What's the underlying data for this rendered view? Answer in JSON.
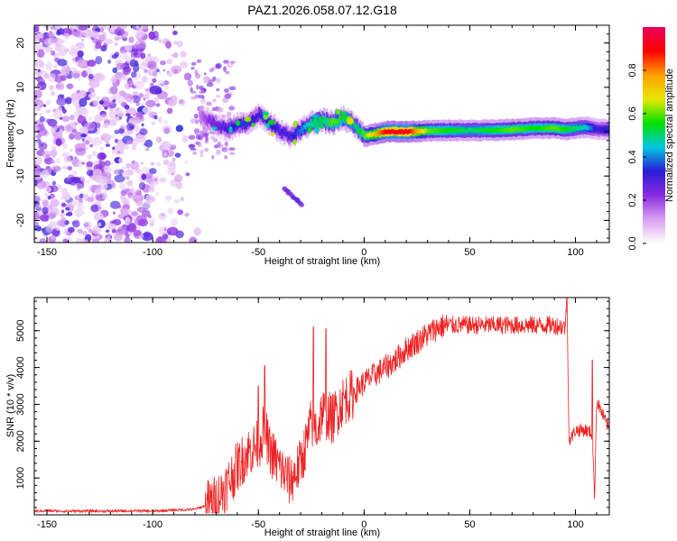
{
  "title": "PAZ1.2026.058.07.12.G18",
  "chart_data": [
    {
      "type": "heatmap",
      "name": "spectrogram",
      "xlabel": "Height of straight line (km)",
      "ylabel": "Frequency (Hz)",
      "xlim": [
        -156,
        116
      ],
      "ylim": [
        -25,
        24
      ],
      "x_ticks": [
        -150,
        -100,
        -50,
        0,
        50,
        100
      ],
      "x_tick_labels": [
        "-150",
        "-100",
        "-50",
        "0",
        "50",
        "100"
      ],
      "y_ticks": [
        -20,
        -10,
        0,
        10,
        20
      ],
      "y_tick_labels": [
        "-20",
        "-10",
        "0",
        "10",
        "20"
      ],
      "noise_region_x": [
        -156,
        -78
      ],
      "ridge": {
        "x": [
          -78,
          -72,
          -65,
          -60,
          -55,
          -50,
          -45,
          -40,
          -35,
          -30,
          -25,
          -20,
          -15,
          -10,
          -5,
          0,
          10,
          20,
          30,
          40,
          50,
          60,
          70,
          80,
          90,
          95,
          100,
          105,
          110,
          116
        ],
        "freq": [
          3.5,
          2.0,
          0.5,
          1.5,
          2.0,
          4.0,
          2.0,
          0.0,
          -1.0,
          0.5,
          2.0,
          2.5,
          2.0,
          3.0,
          1.5,
          -1.0,
          0.0,
          0.0,
          0.2,
          0.3,
          0.3,
          0.3,
          0.5,
          0.8,
          0.8,
          0.5,
          0.8,
          1.0,
          0.5,
          0.5
        ],
        "amplitude": [
          0.15,
          0.25,
          0.3,
          0.35,
          0.35,
          0.3,
          0.35,
          0.3,
          0.3,
          0.4,
          0.5,
          0.55,
          0.6,
          0.55,
          0.5,
          0.6,
          0.9,
          0.92,
          0.6,
          0.55,
          0.5,
          0.55,
          0.6,
          0.55,
          0.6,
          0.55,
          0.5,
          0.45,
          0.3,
          0.35
        ]
      },
      "colorbar": {
        "label": "Normalized spectral amplitude",
        "range": [
          0,
          1
        ],
        "ticks": [
          0.0,
          0.2,
          0.4,
          0.6,
          0.8
        ],
        "tick_labels": [
          "0.0",
          "0.2",
          "0.4",
          "0.6",
          "0.8"
        ],
        "colors": [
          "#ffffff",
          "#d9a0f0",
          "#8a2be2",
          "#2a1bd8",
          "#00c8e0",
          "#00e000",
          "#e8e800",
          "#ffa000",
          "#ff0000",
          "#e8005a"
        ]
      }
    },
    {
      "type": "line",
      "name": "snr",
      "xlabel": "Height of straight line (km)",
      "ylabel": "SNR (10 * v/v)",
      "xlim": [
        -156,
        116
      ],
      "ylim": [
        0,
        5900
      ],
      "x_ticks": [
        -150,
        -100,
        -50,
        0,
        50,
        100
      ],
      "x_tick_labels": [
        "-150",
        "-100",
        "-50",
        "0",
        "50",
        "100"
      ],
      "y_ticks": [
        1000,
        2000,
        3000,
        4000,
        5000
      ],
      "y_tick_labels": [
        "1000",
        "2000",
        "3000",
        "4000",
        "5000"
      ],
      "color": "#ee2222",
      "series": [
        {
          "name": "SNR",
          "x": [
            -156,
            -150,
            -140,
            -130,
            -120,
            -110,
            -100,
            -90,
            -80,
            -75,
            -70,
            -65,
            -60,
            -55,
            -50,
            -47,
            -45,
            -40,
            -35,
            -30,
            -27,
            -25,
            -22,
            -20,
            -15,
            -10,
            -5,
            0,
            5,
            10,
            15,
            20,
            25,
            30,
            35,
            40,
            45,
            50,
            60,
            70,
            80,
            90,
            95,
            96,
            97,
            100,
            105,
            108,
            109,
            110,
            116
          ],
          "y": [
            100,
            110,
            100,
            105,
            100,
            110,
            100,
            130,
            150,
            250,
            400,
            800,
            1300,
            1700,
            1900,
            2400,
            1800,
            1300,
            900,
            1400,
            2000,
            2500,
            2300,
            2800,
            2600,
            3100,
            3300,
            3600,
            3800,
            4000,
            4200,
            4500,
            4700,
            4900,
            5100,
            5150,
            5150,
            5150,
            5150,
            5150,
            5150,
            5150,
            5100,
            5700,
            2000,
            2300,
            2300,
            2200,
            400,
            3100,
            2300
          ]
        }
      ],
      "spikes": [
        {
          "x": -50,
          "y": 3500
        },
        {
          "x": -47,
          "y": 4050
        },
        {
          "x": -24,
          "y": 5100
        },
        {
          "x": -18,
          "y": 5050
        },
        {
          "x": 96,
          "y": 5900
        },
        {
          "x": 108,
          "y": 4200
        }
      ]
    }
  ]
}
